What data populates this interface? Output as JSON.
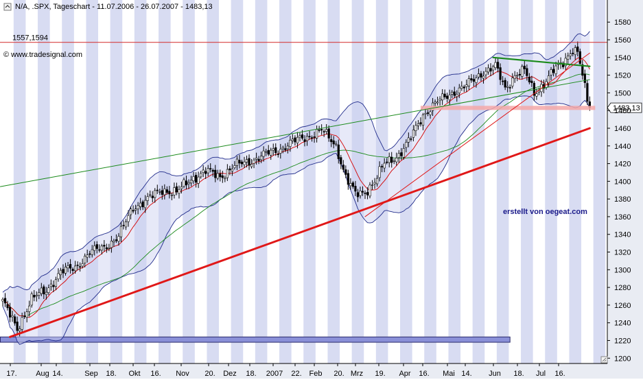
{
  "header": {
    "title": "N/A, .SPX, Tageschart - 11.07.2006 - 26.07.2007 - 1483,13",
    "source": "© www.tradesignal.com"
  },
  "colors": {
    "band_fill": "#c9cff0",
    "band_stroke": "#1f2a8a",
    "candle": "#000000",
    "ma_red": "#d40000",
    "ma_green": "#1a8a1a",
    "resistance": "#d42a2a",
    "support_line": "#e01818",
    "channel_green": "#1a8a1a",
    "support_zone": "#f4a8a8",
    "base_bar": "#8a90d8",
    "stripe": "#d8dcf2",
    "axis": "#000000"
  },
  "credit": "erstellt von oegeat.com",
  "chart_data": {
    "type": "candlestick",
    "instrument": ".SPX",
    "period": "Tageschart",
    "ylim": [
      1194,
      1605
    ],
    "y_ticks": [
      1200,
      1220,
      1240,
      1260,
      1280,
      1300,
      1320,
      1340,
      1360,
      1380,
      1400,
      1420,
      1440,
      1460,
      1480,
      1500,
      1520,
      1540,
      1560,
      1580
    ],
    "x_labels": [
      "17.",
      "Aug",
      "14.",
      "Sep",
      "18.",
      "Okt",
      "16.",
      "Nov",
      "20.",
      "Dez",
      "18.",
      "2007",
      "22.",
      "Feb",
      "20.",
      "Mrz",
      "19.",
      "Apr",
      "16.",
      "Mai",
      "14.",
      "Jun",
      "18.",
      "Jul",
      "16."
    ],
    "price_path": [
      [
        0,
        1265
      ],
      [
        6,
        1232
      ],
      [
        12,
        1268
      ],
      [
        18,
        1276
      ],
      [
        24,
        1298
      ],
      [
        30,
        1302
      ],
      [
        36,
        1320
      ],
      [
        42,
        1325
      ],
      [
        48,
        1338
      ],
      [
        54,
        1370
      ],
      [
        60,
        1380
      ],
      [
        66,
        1390
      ],
      [
        72,
        1388
      ],
      [
        78,
        1402
      ],
      [
        84,
        1412
      ],
      [
        90,
        1405
      ],
      [
        96,
        1418
      ],
      [
        102,
        1422
      ],
      [
        108,
        1430
      ],
      [
        114,
        1435
      ],
      [
        120,
        1445
      ],
      [
        126,
        1450
      ],
      [
        132,
        1458
      ],
      [
        138,
        1440
      ],
      [
        142,
        1405
      ],
      [
        146,
        1385
      ],
      [
        150,
        1388
      ],
      [
        154,
        1400
      ],
      [
        158,
        1420
      ],
      [
        164,
        1430
      ],
      [
        168,
        1445
      ],
      [
        174,
        1475
      ],
      [
        180,
        1490
      ],
      [
        186,
        1500
      ],
      [
        192,
        1508
      ],
      [
        198,
        1522
      ],
      [
        204,
        1530
      ],
      [
        208,
        1505
      ],
      [
        212,
        1520
      ],
      [
        216,
        1525
      ],
      [
        220,
        1500
      ],
      [
        224,
        1510
      ],
      [
        228,
        1525
      ],
      [
        232,
        1535
      ],
      [
        236,
        1550
      ],
      [
        238,
        1545
      ],
      [
        240,
        1520
      ],
      [
        242,
        1490
      ],
      [
        243,
        1483.13
      ]
    ],
    "last_price": 1483.13,
    "last_price_label": "1483,13",
    "resistance": {
      "value": 1557.1594,
      "label": "1557,1594"
    },
    "support_zone": {
      "from_x": 173,
      "to_x": 243,
      "value": 1483
    },
    "lines": [
      {
        "name": "support-trend",
        "points": [
          [
            3,
            1224
          ],
          [
            243,
            1460
          ]
        ]
      },
      {
        "name": "long-green-channel",
        "points": [
          [
            -1,
            1394
          ],
          [
            243,
            1515
          ]
        ]
      },
      {
        "name": "top-green-channel",
        "points": [
          [
            203,
            1540
          ],
          [
            243,
            1530
          ]
        ]
      },
      {
        "name": "short-red-trend",
        "points": [
          [
            150,
            1360
          ],
          [
            243,
            1545
          ]
        ]
      }
    ],
    "base_bar": {
      "from_x": -1,
      "to_x": 210,
      "from": 1218,
      "to": 1224
    },
    "indicators": [
      "Bollinger bands",
      "moving averages"
    ]
  }
}
